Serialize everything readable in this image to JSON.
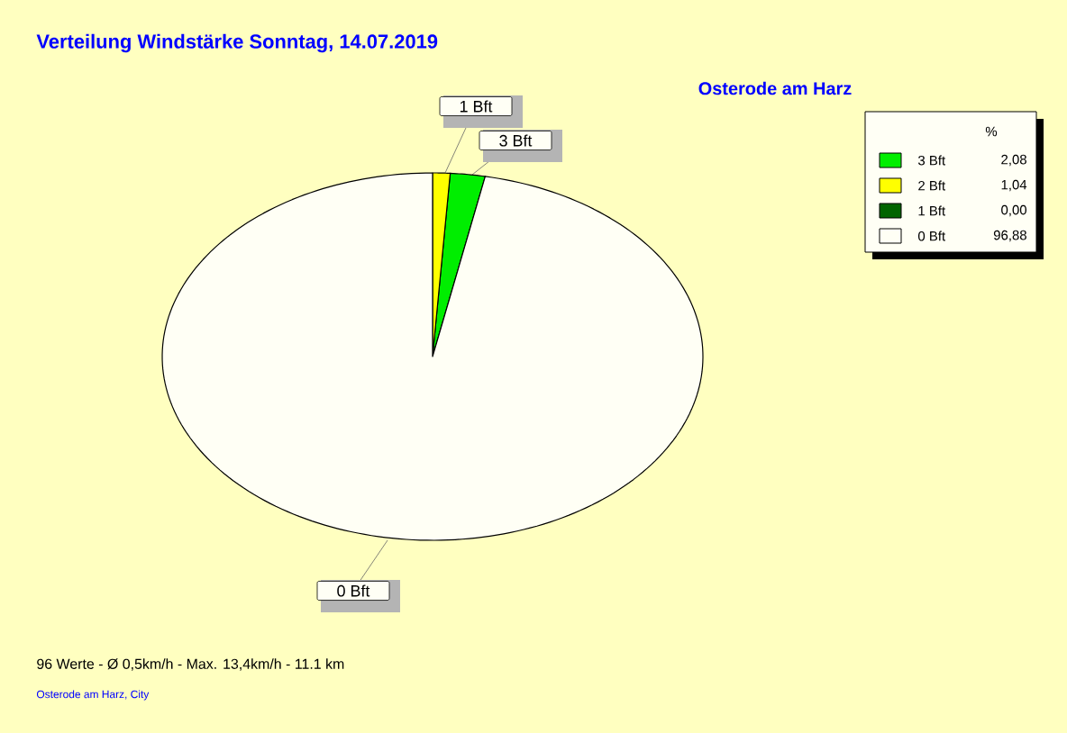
{
  "chart_data": {
    "type": "pie",
    "title": "Verteilung Windstärke  Sonntag, 14.07.2019",
    "subtitle": "Osterode am Harz",
    "legend_title": "%",
    "legend": "top right",
    "categories": [
      "3 Bft",
      "2 Bft",
      "1 Bft",
      "0 Bft"
    ],
    "values": [
      2.08,
      1.04,
      0.0,
      96.88
    ],
    "value_labels": [
      "2,08",
      "1,04",
      "0,00",
      "96,88"
    ],
    "colors": [
      "#00ee00",
      "#ffff00",
      "#006400",
      "#fffff5"
    ],
    "annotations": [
      "1 Bft",
      "3 Bft",
      "0 Bft",
      "96 Werte   -   Ø 0,5km/h  -  Max. 13,4km/h   -   11.1 km",
      "Osterode am Harz, City"
    ]
  }
}
